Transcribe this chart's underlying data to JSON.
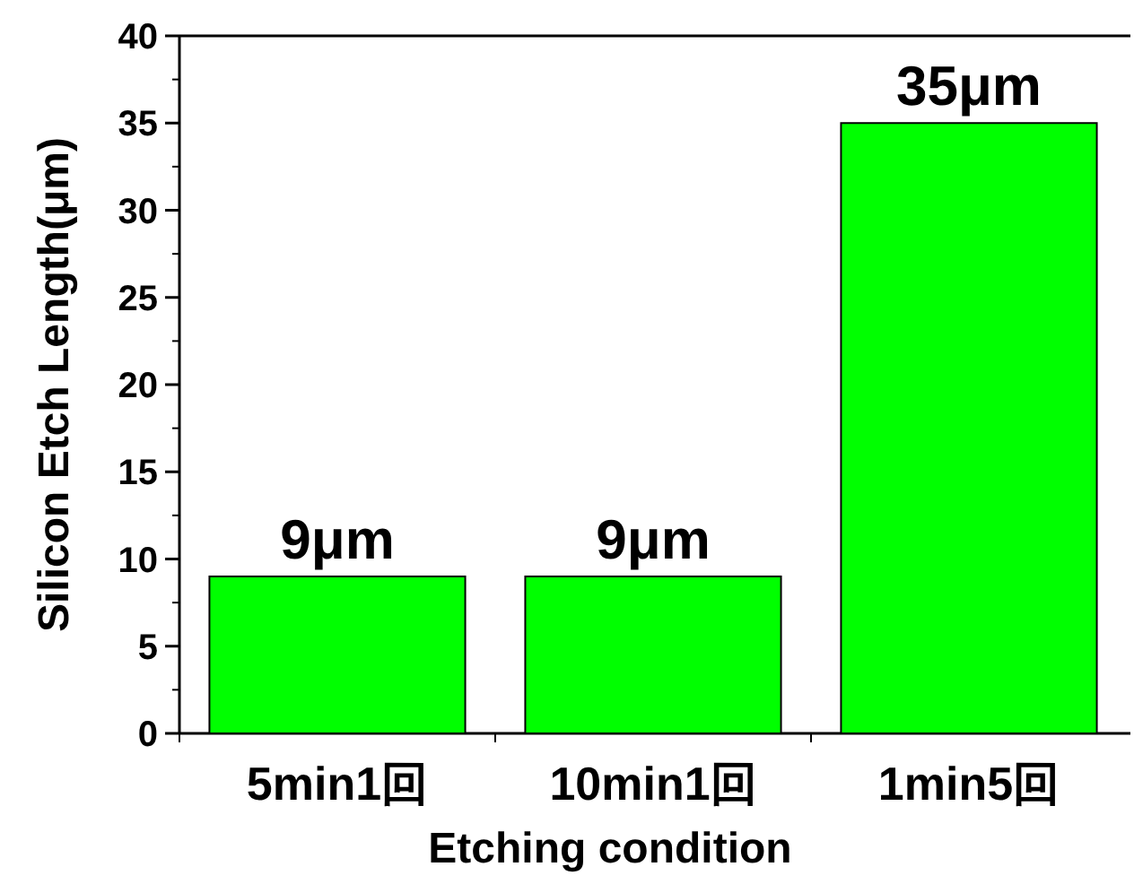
{
  "chart_data": {
    "type": "bar",
    "xlabel": "Etching condition",
    "ylabel": "Silicon Etch Length(μm)",
    "categories": [
      "5min1回",
      "10min1回",
      "1min5回"
    ],
    "values": [
      9,
      9,
      35
    ],
    "color": "#00ff00",
    "value_labels": [
      "9μm",
      "9μm",
      "35μm"
    ],
    "ylim": [
      0,
      40
    ],
    "yticks": [
      0,
      5,
      10,
      15,
      20,
      25,
      30,
      35,
      40
    ]
  }
}
